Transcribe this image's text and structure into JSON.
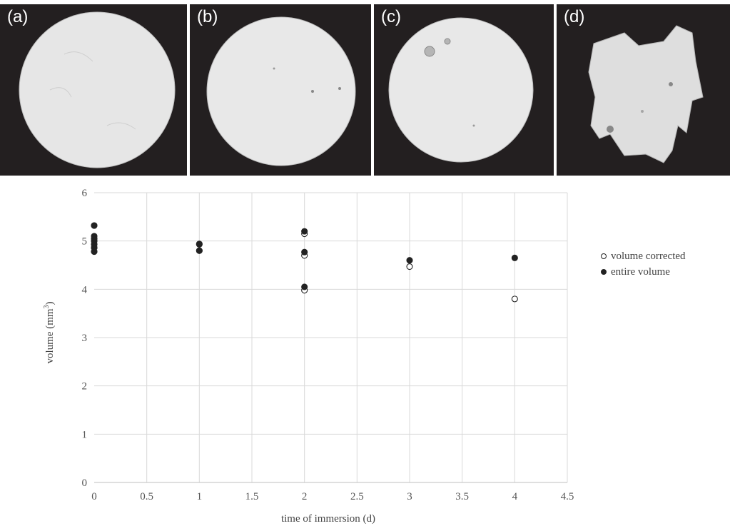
{
  "panels": [
    {
      "label": "(a)"
    },
    {
      "label": "(b)"
    },
    {
      "label": "(c)"
    },
    {
      "label": "(d)"
    }
  ],
  "chart_data": {
    "type": "scatter",
    "title": "",
    "xlabel": "time of immersion (d)",
    "ylabel_main": "volume (mm",
    "ylabel_sup": "3",
    "ylabel_close": ")",
    "xlim": [
      0,
      4.5
    ],
    "ylim": [
      0,
      6
    ],
    "xticks": [
      "0",
      "0.5",
      "1",
      "1.5",
      "2",
      "2.5",
      "3",
      "3.5",
      "4",
      "4.5"
    ],
    "yticks": [
      "0",
      "1",
      "2",
      "3",
      "4",
      "5",
      "6"
    ],
    "grid": true,
    "legend_position": "right",
    "series": [
      {
        "name": "volume corrected",
        "marker": "open",
        "points": [
          [
            0,
            4.78
          ],
          [
            0,
            4.86
          ],
          [
            0,
            4.93
          ],
          [
            0,
            5.0
          ],
          [
            0,
            5.05
          ],
          [
            0,
            5.32
          ],
          [
            1,
            4.8
          ],
          [
            1,
            4.93
          ],
          [
            2,
            3.98
          ],
          [
            2,
            4.7
          ],
          [
            2,
            5.15
          ],
          [
            3,
            4.47
          ],
          [
            4,
            3.8
          ]
        ]
      },
      {
        "name": "entire volume",
        "marker": "filled",
        "points": [
          [
            0,
            4.78
          ],
          [
            0,
            4.86
          ],
          [
            0,
            4.93
          ],
          [
            0,
            5.0
          ],
          [
            0,
            5.05
          ],
          [
            0,
            5.1
          ],
          [
            0,
            5.32
          ],
          [
            1,
            4.8
          ],
          [
            1,
            4.94
          ],
          [
            2,
            4.05
          ],
          [
            2,
            4.77
          ],
          [
            2,
            5.2
          ],
          [
            3,
            4.6
          ],
          [
            4,
            4.65
          ]
        ]
      }
    ]
  }
}
